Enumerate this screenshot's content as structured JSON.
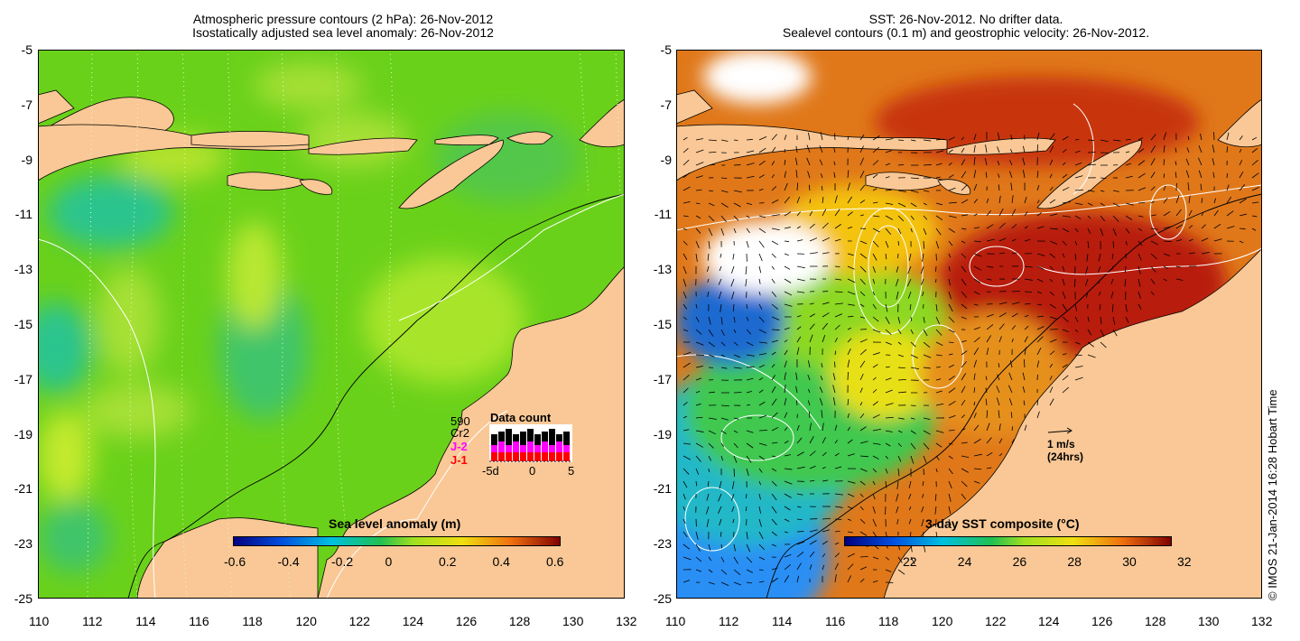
{
  "left_panel": {
    "title_line1": "Atmospheric pressure contours (2 hPa): 26-Nov-2012",
    "title_line2": "Isostatically adjusted sea level anomaly: 26-Nov-2012",
    "colorbar_label": "Sea level anomaly (m)",
    "colorbar_ticks": [
      "-0.6",
      "-0.4",
      "-0.2",
      "0",
      "0.2",
      "0.4",
      "0.6"
    ],
    "legend": {
      "count": "590",
      "cr2": "Cr2",
      "j2": "J-2",
      "j1": "J-1",
      "title": "Data count",
      "x_ticks": [
        "-5d",
        "0",
        "5"
      ],
      "colors": {
        "cr2": "#000000",
        "j2": "#ff00ff",
        "j1": "#ff0000"
      }
    }
  },
  "right_panel": {
    "title_line1": "SST: 26-Nov-2012. No drifter data.",
    "title_line2": "Sealevel contours (0.1 m) and geostrophic velocity: 26-Nov-2012.",
    "colorbar_label": "3-day SST composite (°C)",
    "colorbar_ticks": [
      "22",
      "24",
      "26",
      "28",
      "30",
      "32"
    ],
    "velocity_scale": {
      "line1": "1 m/s",
      "line2": "(24hrs)"
    }
  },
  "axes": {
    "y_ticks": [
      "-5",
      "-7",
      "-9",
      "-11",
      "-13",
      "-15",
      "-17",
      "-19",
      "-21",
      "-23",
      "-25"
    ],
    "x_ticks": [
      "110",
      "112",
      "114",
      "116",
      "118",
      "120",
      "122",
      "124",
      "126",
      "128",
      "130",
      "132"
    ]
  },
  "credit": "© IMOS 21-Jan-2014 16:28 Hobart Time",
  "colors": {
    "land": "#f9c896",
    "sla_bg": "#6ad11a",
    "sst_bg": "#e0781a"
  }
}
